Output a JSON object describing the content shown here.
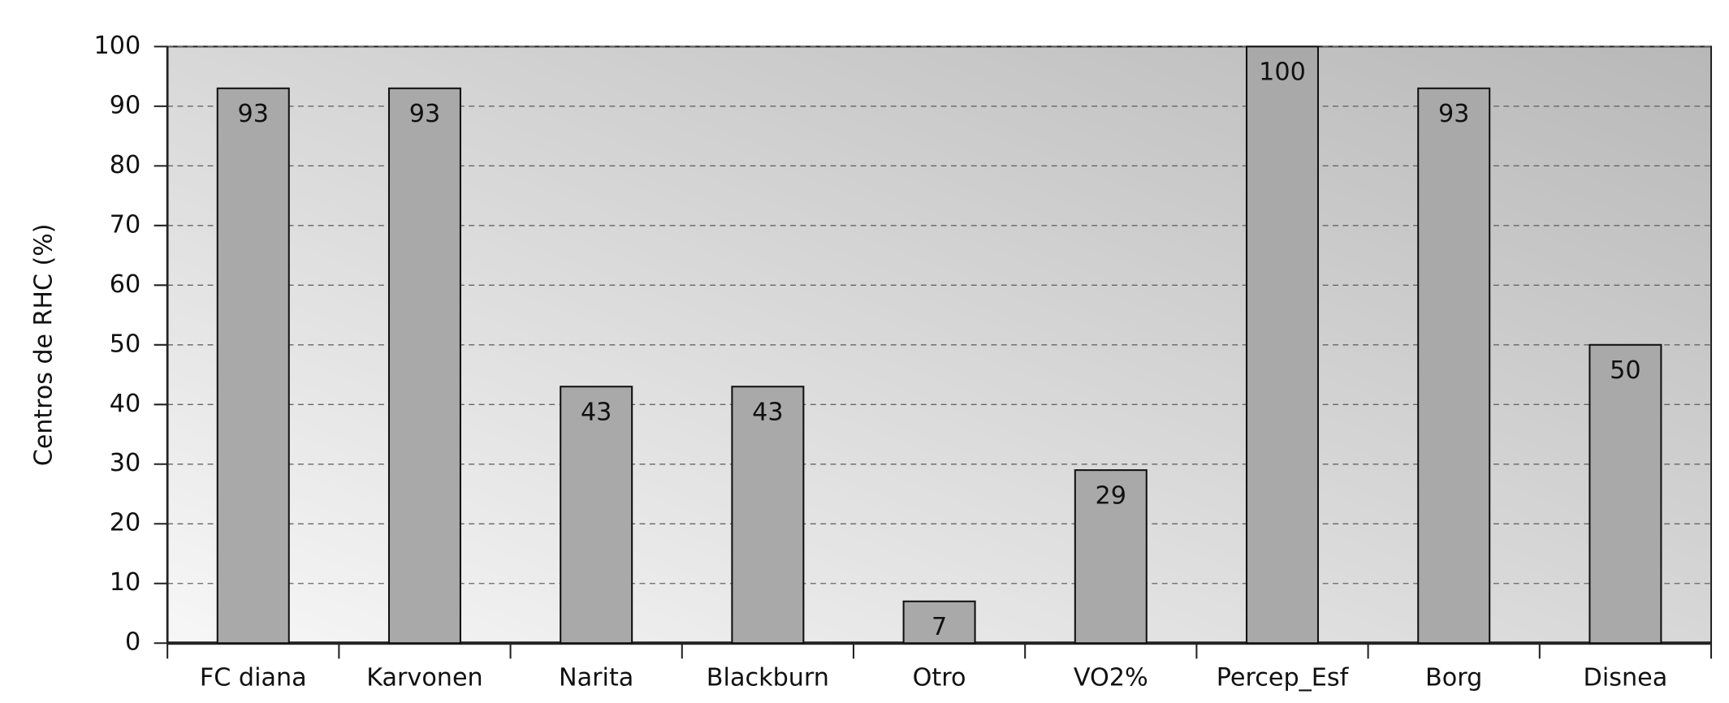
{
  "chart_data": {
    "type": "bar",
    "ylabel": "Centros de RHC (%)",
    "categories": [
      "FC diana",
      "Karvonen",
      "Narita",
      "Blackburn",
      "Otro",
      "VO2%",
      "Percep_Esf",
      "Borg",
      "Disnea"
    ],
    "values": [
      93,
      93,
      43,
      43,
      7,
      29,
      100,
      93,
      50
    ],
    "color": "#a9a9a9",
    "ylim": [
      0,
      100
    ],
    "yticks": [
      0,
      10,
      20,
      30,
      40,
      50,
      60,
      70,
      80,
      90,
      100
    ],
    "grid": true
  }
}
